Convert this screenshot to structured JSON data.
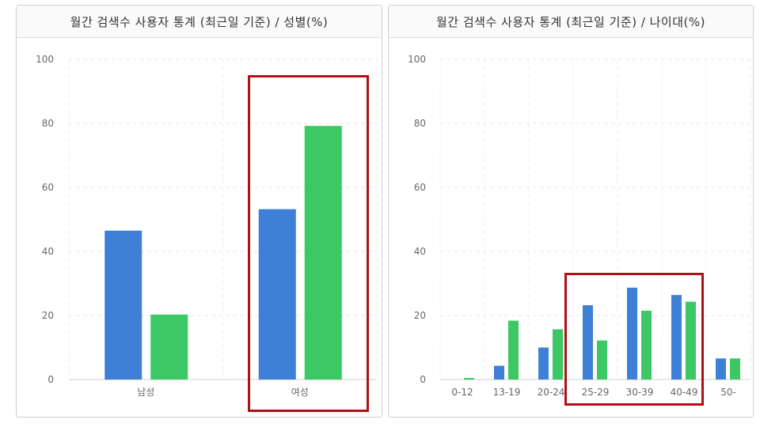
{
  "panels": {
    "gender": {
      "title": "월간 검색수 사용자 통계 (최근일 기준) / 성별(%)"
    },
    "age": {
      "title": "월간 검색수 사용자 통계 (최근일 기준) / 나이대(%)"
    }
  },
  "colors": {
    "series_a": "#3e7fd8",
    "series_b": "#3cc864",
    "highlight": "#b01016"
  },
  "chart_data": [
    {
      "type": "bar",
      "title": "월간 검색수 사용자 통계 (최근일 기준) / 성별(%)",
      "categories": [
        "남성",
        "여성"
      ],
      "series": [
        {
          "values": [
            46.5,
            53.2
          ]
        },
        {
          "values": [
            20.3,
            79.2
          ]
        }
      ],
      "ylim": [
        0,
        100
      ],
      "yticks": [
        "0",
        "20",
        "40",
        "60",
        "80",
        "100"
      ],
      "grid": true
    },
    {
      "type": "bar",
      "title": "월간 검색수 사용자 통계 (최근일 기준) / 나이대(%)",
      "categories": [
        "0-12",
        "13-19",
        "20-24",
        "25-29",
        "30-39",
        "40-49",
        "50-"
      ],
      "series": [
        {
          "values": [
            0,
            4.3,
            10.0,
            23.2,
            28.7,
            26.4,
            6.6
          ]
        },
        {
          "values": [
            0.5,
            18.4,
            15.7,
            12.2,
            21.5,
            24.3,
            6.6
          ]
        }
      ],
      "ylim": [
        0,
        100
      ],
      "yticks": [
        "0",
        "20",
        "40",
        "60",
        "80",
        "100"
      ],
      "grid": true
    }
  ]
}
